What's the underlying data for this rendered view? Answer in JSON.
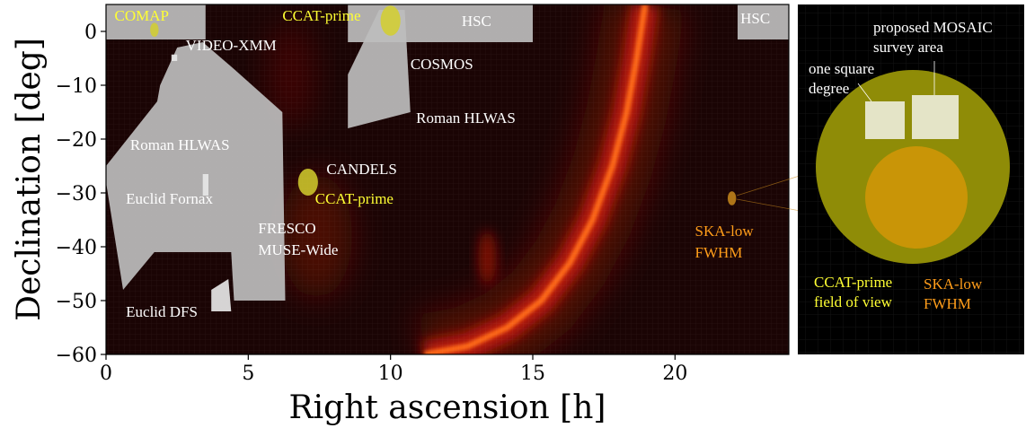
{
  "chart_data": [
    {
      "type": "map",
      "xlabel": "Right ascension [h]",
      "ylabel": "Declination [deg]",
      "xlim": [
        0,
        24
      ],
      "ylim": [
        -60,
        5
      ],
      "xticks": [
        0,
        5,
        10,
        15,
        20
      ],
      "yticks": [
        0,
        -10,
        -20,
        -30,
        -40,
        -50,
        -60
      ],
      "grid": true,
      "background_colormap": "black-red-yellow (galactic emission)",
      "colors": {
        "survey_fill": "#bdbdbd",
        "ccat": "#d4cf2e",
        "ska": "#c98a1c",
        "label_white": "#ffffff",
        "label_yellow": "#ffff33",
        "label_orange": "#ff9d1a"
      },
      "regions": [
        {
          "name": "HSC",
          "polygon": [
            [
              0,
              5
            ],
            [
              3.5,
              5
            ],
            [
              3.5,
              -1.5
            ],
            [
              0,
              -1.5
            ]
          ]
        },
        {
          "name": "HSC",
          "polygon": [
            [
              8.5,
              5
            ],
            [
              15,
              5
            ],
            [
              15,
              -2
            ],
            [
              8.5,
              -2
            ]
          ]
        },
        {
          "name": "HSC",
          "polygon": [
            [
              22.2,
              5
            ],
            [
              24,
              5
            ],
            [
              24,
              -1.5
            ],
            [
              22.2,
              -1.5
            ]
          ]
        },
        {
          "name": "COSMOS / Roman HLWAS",
          "polygon": [
            [
              9.6,
              4
            ],
            [
              10.5,
              4
            ],
            [
              10.7,
              -15
            ],
            [
              8.5,
              -18
            ],
            [
              8.5,
              -8
            ]
          ]
        },
        {
          "name": "Roman HLWAS",
          "polygon": [
            [
              2.5,
              -3
            ],
            [
              3.4,
              -2
            ],
            [
              4.5,
              -7
            ],
            [
              6.2,
              -15
            ],
            [
              6.3,
              -50
            ],
            [
              4.5,
              -50
            ],
            [
              4.4,
              -41
            ],
            [
              1.7,
              -41
            ],
            [
              0.6,
              -48
            ],
            [
              0,
              -28
            ],
            [
              0,
              -25
            ],
            [
              1.8,
              -13
            ],
            [
              1.9,
              -10
            ]
          ]
        },
        {
          "name": "Euclid Fornax",
          "polygon": [
            [
              3.4,
              -26.5
            ],
            [
              3.6,
              -26.5
            ],
            [
              3.6,
              -30.5
            ],
            [
              3.4,
              -30.5
            ]
          ]
        },
        {
          "name": "Euclid DFS",
          "polygon": [
            [
              3.7,
              -48
            ],
            [
              4.3,
              -46
            ],
            [
              4.4,
              -52
            ],
            [
              3.7,
              -52
            ]
          ]
        },
        {
          "name": "VIDEO-XMM",
          "polygon": [
            [
              2.3,
              -4.3
            ],
            [
              2.5,
              -4.3
            ],
            [
              2.5,
              -5.5
            ],
            [
              2.3,
              -5.5
            ]
          ]
        }
      ],
      "fields": [
        {
          "name": "COMAP",
          "ra": 1.7,
          "dec": 0.3,
          "rx": 0.15,
          "ry": 1.3,
          "color": "ccat"
        },
        {
          "name": "CCAT-prime",
          "ra": 10.0,
          "dec": 2.0,
          "rx": 0.35,
          "ry": 2.8,
          "color": "ccat"
        },
        {
          "name": "CCAT-prime",
          "ra": 7.1,
          "dec": -28.0,
          "rx": 0.35,
          "ry": 2.5,
          "color": "ccat"
        },
        {
          "name": "SKA-low FWHM",
          "ra": 22.0,
          "dec": -31.0,
          "rx": 0.15,
          "ry": 1.3,
          "color": "ska"
        }
      ],
      "labels": [
        {
          "text": "COMAP",
          "ra": 0.3,
          "dec": 2.0,
          "color": "yellow"
        },
        {
          "text": "CCAT-prime",
          "ra": 6.2,
          "dec": 2.0,
          "color": "yellow"
        },
        {
          "text": "HSC",
          "ra": 12.5,
          "dec": 1.0,
          "color": "white"
        },
        {
          "text": "HSC",
          "ra": 22.3,
          "dec": 1.5,
          "color": "white"
        },
        {
          "text": "VIDEO-XMM",
          "ra": 2.8,
          "dec": -3.5,
          "color": "white"
        },
        {
          "text": "COSMOS",
          "ra": 10.7,
          "dec": -7.0,
          "color": "white"
        },
        {
          "text": "Roman HLWAS",
          "ra": 10.9,
          "dec": -17.0,
          "color": "white"
        },
        {
          "text": "Roman HLWAS",
          "ra": 0.85,
          "dec": -22.0,
          "color": "white"
        },
        {
          "text": "CANDELS",
          "ra": 7.75,
          "dec": -26.5,
          "color": "white"
        },
        {
          "text": "CCAT-prime",
          "ra": 7.35,
          "dec": -32.0,
          "color": "yellow"
        },
        {
          "text": "Euclid Fornax",
          "ra": 0.7,
          "dec": -32.0,
          "color": "white"
        },
        {
          "text": "FRESCO",
          "ra": 5.35,
          "dec": -37.5,
          "color": "white"
        },
        {
          "text": "MUSE-Wide",
          "ra": 5.35,
          "dec": -41.5,
          "color": "white"
        },
        {
          "text": "SKA-low",
          "ra": 20.7,
          "dec": -38.0,
          "color": "orange"
        },
        {
          "text": "FWHM",
          "ra": 20.7,
          "dec": -42.0,
          "color": "orange"
        },
        {
          "text": "Euclid DFS",
          "ra": 0.7,
          "dec": -53.0,
          "color": "white"
        }
      ],
      "galactic_plane_ra": [
        [
          18.95,
          5
        ],
        [
          18.65,
          -5
        ],
        [
          18.3,
          -15
        ],
        [
          17.8,
          -25
        ],
        [
          17.1,
          -35
        ],
        [
          16.3,
          -43
        ],
        [
          15.3,
          -50
        ],
        [
          14.1,
          -55
        ],
        [
          12.7,
          -58.5
        ],
        [
          11.2,
          -60
        ]
      ]
    },
    {
      "type": "inset",
      "description_visible": false,
      "labels": [
        {
          "text": "proposed MOSAIC",
          "color": "white"
        },
        {
          "text": "survey area",
          "color": "white"
        },
        {
          "text": "one square",
          "color": "white"
        },
        {
          "text": "degree",
          "color": "white"
        },
        {
          "text": "CCAT-prime",
          "color": "yellow"
        },
        {
          "text": "field of view",
          "color": "yellow"
        },
        {
          "text": "SKA-low",
          "color": "orange"
        },
        {
          "text": "FWHM",
          "color": "orange"
        }
      ]
    }
  ]
}
